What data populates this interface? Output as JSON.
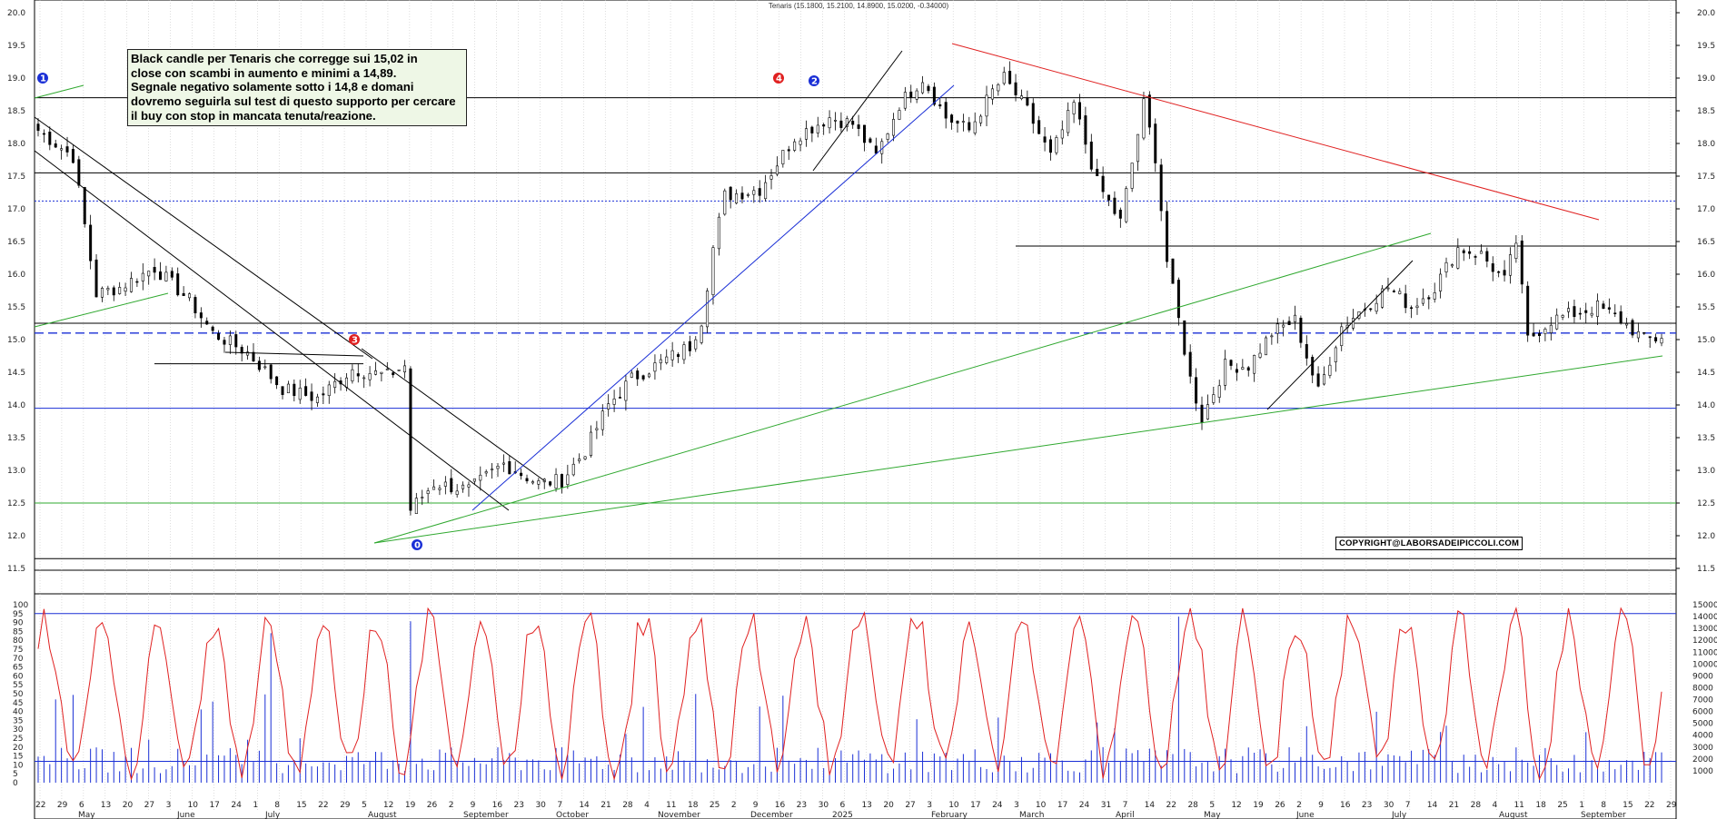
{
  "header": "Tenaris (15.1800, 15.2100, 14.8900, 15.0200, -0.34000)",
  "annotation_lines": [
    "Black candle per Tenaris che corregge sui 15,02 in",
    "close con scambi in aumento e minimi a 14,89.",
    "Segnale negativo solamente sotto i 14,8 e domani",
    "dovremo seguirla sul test di questo supporto per cercare",
    "il buy con stop in mancata tenuta/reazione."
  ],
  "copyright": "COPYRIGHT@LABORSADEIPICCOLI.COM",
  "markers": [
    {
      "label": "1",
      "color": "#1a2fd6"
    },
    {
      "label": "3",
      "color": "#e02020"
    },
    {
      "label": "0",
      "color": "#1a2fd6"
    },
    {
      "label": "4",
      "color": "#e02020"
    },
    {
      "label": "2",
      "color": "#1a2fd6"
    }
  ],
  "chart_data": [
    {
      "type": "candlestick",
      "title": "Tenaris",
      "ylim": [
        11.5,
        20.0
      ],
      "y_ticks_right": [
        "20.0",
        "19.5",
        "19.0",
        "18.5",
        "18.0",
        "17.5",
        "17.0",
        "16.5",
        "16.0",
        "15.5",
        "15.0",
        "14.5",
        "14.0",
        "13.5",
        "13.0",
        "12.5",
        "12.0",
        "11.5"
      ],
      "y_ticks_left": [
        "20.0",
        "19.5",
        "19.0",
        "18.5",
        "18.0",
        "17.5",
        "17.0",
        "16.5",
        "16.0",
        "15.5",
        "15.0",
        "14.5",
        "14.0",
        "13.5",
        "13.0",
        "12.5",
        "12.0",
        "11.5"
      ],
      "x_day_labels": [
        "22",
        "29",
        "6",
        "13",
        "20",
        "27",
        "3",
        "10",
        "17",
        "24",
        "1",
        "8",
        "15",
        "22",
        "29",
        "5",
        "12",
        "19",
        "26",
        "2",
        "9",
        "16",
        "23",
        "30",
        "7",
        "14",
        "21",
        "28",
        "4",
        "11",
        "18",
        "25",
        "2",
        "9",
        "16",
        "23",
        "30",
        "6",
        "13",
        "20",
        "27",
        "3",
        "10",
        "17",
        "24",
        "3",
        "10",
        "17",
        "24",
        "31",
        "7",
        "14",
        "22",
        "28",
        "5",
        "12",
        "19",
        "26",
        "2",
        "9",
        "16",
        "23",
        "30",
        "7",
        "14",
        "21",
        "28",
        "4",
        "11",
        "18",
        "25",
        "1",
        "8",
        "15",
        "22",
        "29"
      ],
      "x_month_labels": [
        "May",
        "June",
        "July",
        "August",
        "September",
        "October",
        "November",
        "December",
        "2025",
        "February",
        "March",
        "April",
        "May",
        "June",
        "July",
        "August",
        "September"
      ],
      "close_anchors": [
        [
          0,
          18.2
        ],
        [
          6,
          17.8
        ],
        [
          10,
          15.7
        ],
        [
          14,
          15.8
        ],
        [
          20,
          16.1
        ],
        [
          26,
          15.6
        ],
        [
          30,
          15.1
        ],
        [
          36,
          14.8
        ],
        [
          42,
          14.25
        ],
        [
          48,
          14.1
        ],
        [
          54,
          14.55
        ],
        [
          60,
          14.45
        ],
        [
          63,
          14.6
        ],
        [
          64,
          12.4
        ],
        [
          68,
          12.8
        ],
        [
          74,
          12.7
        ],
        [
          80,
          13.1
        ],
        [
          86,
          12.8
        ],
        [
          90,
          12.85
        ],
        [
          94,
          13.3
        ],
        [
          98,
          14.0
        ],
        [
          102,
          14.4
        ],
        [
          106,
          14.6
        ],
        [
          112,
          14.9
        ],
        [
          114,
          15.3
        ],
        [
          116,
          16.4
        ],
        [
          118,
          17.2
        ],
        [
          124,
          17.3
        ],
        [
          130,
          18.1
        ],
        [
          136,
          18.4
        ],
        [
          140,
          18.3
        ],
        [
          144,
          17.8
        ],
        [
          148,
          18.6
        ],
        [
          152,
          19.0
        ],
        [
          156,
          18.4
        ],
        [
          160,
          18.2
        ],
        [
          164,
          18.8
        ],
        [
          166,
          19.0
        ],
        [
          170,
          18.5
        ],
        [
          174,
          17.8
        ],
        [
          178,
          18.6
        ],
        [
          182,
          17.4
        ],
        [
          186,
          16.8
        ],
        [
          190,
          18.6
        ],
        [
          192,
          17.8
        ],
        [
          194,
          16.2
        ],
        [
          198,
          14.4
        ],
        [
          200,
          13.8
        ],
        [
          204,
          14.6
        ],
        [
          208,
          14.6
        ],
        [
          212,
          15.1
        ],
        [
          216,
          15.3
        ],
        [
          220,
          14.2
        ],
        [
          224,
          15.2
        ],
        [
          228,
          15.5
        ],
        [
          232,
          15.8
        ],
        [
          236,
          15.5
        ],
        [
          240,
          15.8
        ],
        [
          244,
          16.4
        ],
        [
          248,
          16.3
        ],
        [
          252,
          15.9
        ],
        [
          254,
          16.5
        ],
        [
          256,
          15.0
        ],
        [
          260,
          15.3
        ],
        [
          264,
          15.4
        ],
        [
          268,
          15.5
        ],
        [
          272,
          15.3
        ],
        [
          276,
          15.0
        ],
        [
          279,
          15.02
        ]
      ],
      "horizontal_levels": [
        18.7,
        17.55,
        17.12,
        16.43,
        15.25,
        15.1,
        14.63,
        13.95,
        12.5,
        11.65
      ]
    },
    {
      "type": "line",
      "series": [
        {
          "name": "",
          "color": "#e02020"
        }
      ],
      "y_ticks_left": [
        "100",
        "95",
        "90",
        "85",
        "80",
        "75",
        "70",
        "65",
        "60",
        "55",
        "50",
        "45",
        "40",
        "35",
        "30",
        "25",
        "20",
        "15",
        "10",
        "5",
        "0"
      ],
      "ylim": [
        0,
        100
      ],
      "reference_level": 95
    },
    {
      "type": "bar",
      "series": [
        {
          "name": "",
          "color": "#1a2fd6"
        }
      ],
      "y_ticks_right": [
        "15000",
        "14000",
        "13000",
        "12000",
        "11000",
        "10000",
        "9000",
        "8000",
        "7000",
        "6000",
        "5000",
        "4000",
        "3000",
        "2000",
        "1000"
      ],
      "ylim": [
        0,
        15000
      ],
      "reference_level": 1800
    }
  ]
}
